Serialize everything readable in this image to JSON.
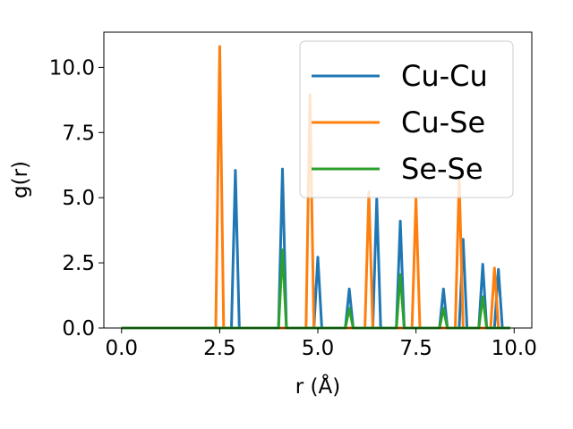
{
  "chart_data": {
    "type": "line",
    "xlabel": "r (Å)",
    "ylabel": "g(r)",
    "xlim": [
      -0.45,
      10.45
    ],
    "ylim": [
      0,
      11.35
    ],
    "xticks": [
      "0.0",
      "2.5",
      "5.0",
      "7.5",
      "10.0"
    ],
    "yticks": [
      "0.0",
      "2.5",
      "5.0",
      "7.5",
      "10.0"
    ],
    "grid": false,
    "legend_position": "top-right",
    "series": [
      {
        "name": "Cu-Cu",
        "color": "#1f77b4",
        "x": [
          0.0,
          2.8,
          2.9,
          3.0,
          4.0,
          4.1,
          4.2,
          4.9,
          5.0,
          5.1,
          5.7,
          5.8,
          5.9,
          6.4,
          6.5,
          6.6,
          7.0,
          7.1,
          7.2,
          8.1,
          8.2,
          8.3,
          8.6,
          8.7,
          8.8,
          9.1,
          9.2,
          9.3,
          9.5,
          9.6,
          9.7,
          9.9
        ],
        "y": [
          0.0,
          0.0,
          6.05,
          0.0,
          0.0,
          6.1,
          0.0,
          0.0,
          2.72,
          0.0,
          0.0,
          1.5,
          0.0,
          0.0,
          4.95,
          0.0,
          0.0,
          4.1,
          0.0,
          0.0,
          1.5,
          0.0,
          0.0,
          3.4,
          0.0,
          0.0,
          2.45,
          0.0,
          0.0,
          2.25,
          0.0,
          0.0
        ]
      },
      {
        "name": "Cu-Se",
        "color": "#ff7f0e",
        "x": [
          0.0,
          2.4,
          2.5,
          2.6,
          4.7,
          4.8,
          4.9,
          6.2,
          6.3,
          6.4,
          7.4,
          7.5,
          7.6,
          8.5,
          8.6,
          8.7,
          9.4,
          9.5,
          9.6,
          9.9
        ],
        "y": [
          0.0,
          0.0,
          10.8,
          0.0,
          0.0,
          8.95,
          0.0,
          0.0,
          5.22,
          0.0,
          0.0,
          4.95,
          0.0,
          0.0,
          5.7,
          0.0,
          0.0,
          2.3,
          0.0,
          0.0
        ]
      },
      {
        "name": "Se-Se",
        "color": "#2ca02c",
        "x": [
          0.0,
          4.0,
          4.1,
          4.2,
          5.7,
          5.8,
          5.9,
          7.0,
          7.1,
          7.2,
          8.1,
          8.2,
          8.3,
          9.1,
          9.2,
          9.3,
          9.9
        ],
        "y": [
          0.0,
          0.0,
          3.0,
          0.0,
          0.0,
          0.75,
          0.0,
          0.0,
          2.05,
          0.0,
          0.0,
          0.75,
          0.0,
          0.0,
          1.2,
          0.0,
          0.0
        ]
      }
    ]
  }
}
